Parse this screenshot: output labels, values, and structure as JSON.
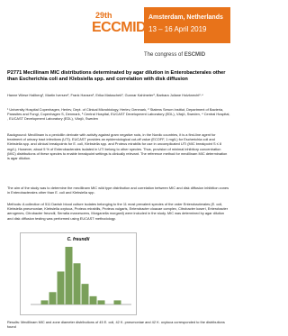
{
  "header": {
    "edition": "29th",
    "congress": "ECCMID",
    "city": "Amsterdam, Netherlands",
    "dates": "13 – 16 April 2019",
    "tagline": "The congress of",
    "society": "ESCMID"
  },
  "title": "P2771 Mecillinam MIC distributions determinated by agar dilution in Enterobacterales other than Escherichia coli and Klebsiella spp. and correlation with disk diffusion",
  "authors": "Hanne Wiese Hallberg¹, Martin Iversen², Frank Hansen², Erika Matuschek³, Gunnar Kahlmeter³, Barbara Juliane Holzknecht¹˒⁴",
  "affiliations": "¹ University Hospital Copenhagen, Herlev, Dept. of Clinical Microbiology, Herlev, Denmark, ² Statens Serum Institut, Department of Bacteria, Parasites and Fungi, Copenhagen S, Denmark, ³ Central Hospital, EUCAST Development Laboratory (EDL), Växjö, Sweden, ⁴ Central Hospital, , EUCAST Development Laboratory (EDL), Växjö, Sweden",
  "background": "Background: Mecillinam is a penicillin derivate with activity against gram negative rods, in the Nordic countries, it is a first-line agent for treatment of urinary tract infections (UTI). EUCAST provides an epidemiological cut-off value (ECOFF, 1 mg/L) for Escherichia coli and Klebsiella spp. and clinical breakpoints for E. coli, Klebsiella spp. and Proteus mirabilis for use in uncomplicated UTI (MIC breakpoint S ≤ 8 mg/L). However, about 5 % of Enterobacterales isolated in UTI belong to other species. Thus, provision of minimal inhibitory concentration (MIC) distributions of these species to enable breakpoint settings is clinically relevant. The reference method for mecillinam MIC determination is agar dilution.",
  "aims": "The aim of the study was to determine the mecillinam MIC wild type distribution and correlation between MIC and disk diffusion inhibition zones in Enterobacterales other than E. coli and Klebsiella spp.",
  "methods": "Methods: A collection of 511 Danish blood culture isolates belonging to the 11 most prevalent species of the order Enterobacterales (E. coli, Klebsiella pneumoniae, Klebsiella oxytoca, Proteus mirabilis, Proteus vulgaris, Enterobacter cloacae complex, Citrobacter koseri, Enterobacter aerogenes, Citrobacter freundii, Serratia marcescens, Morganella morganii) were included in the study. MIC was determined by agar dilution and disk diffusion testing was performed using EUCAST methodology.",
  "figure": {
    "title": "C. freundii",
    "values": [
      0,
      1,
      3,
      8,
      14,
      10,
      5,
      2,
      1,
      0,
      1,
      0
    ]
  },
  "results": "Results: Mecillinam MIC and zone diameter distributions of 45 E. coli, 42 K. pneumoniae and 42 K. oxytoca corresponded to the distributions found"
}
